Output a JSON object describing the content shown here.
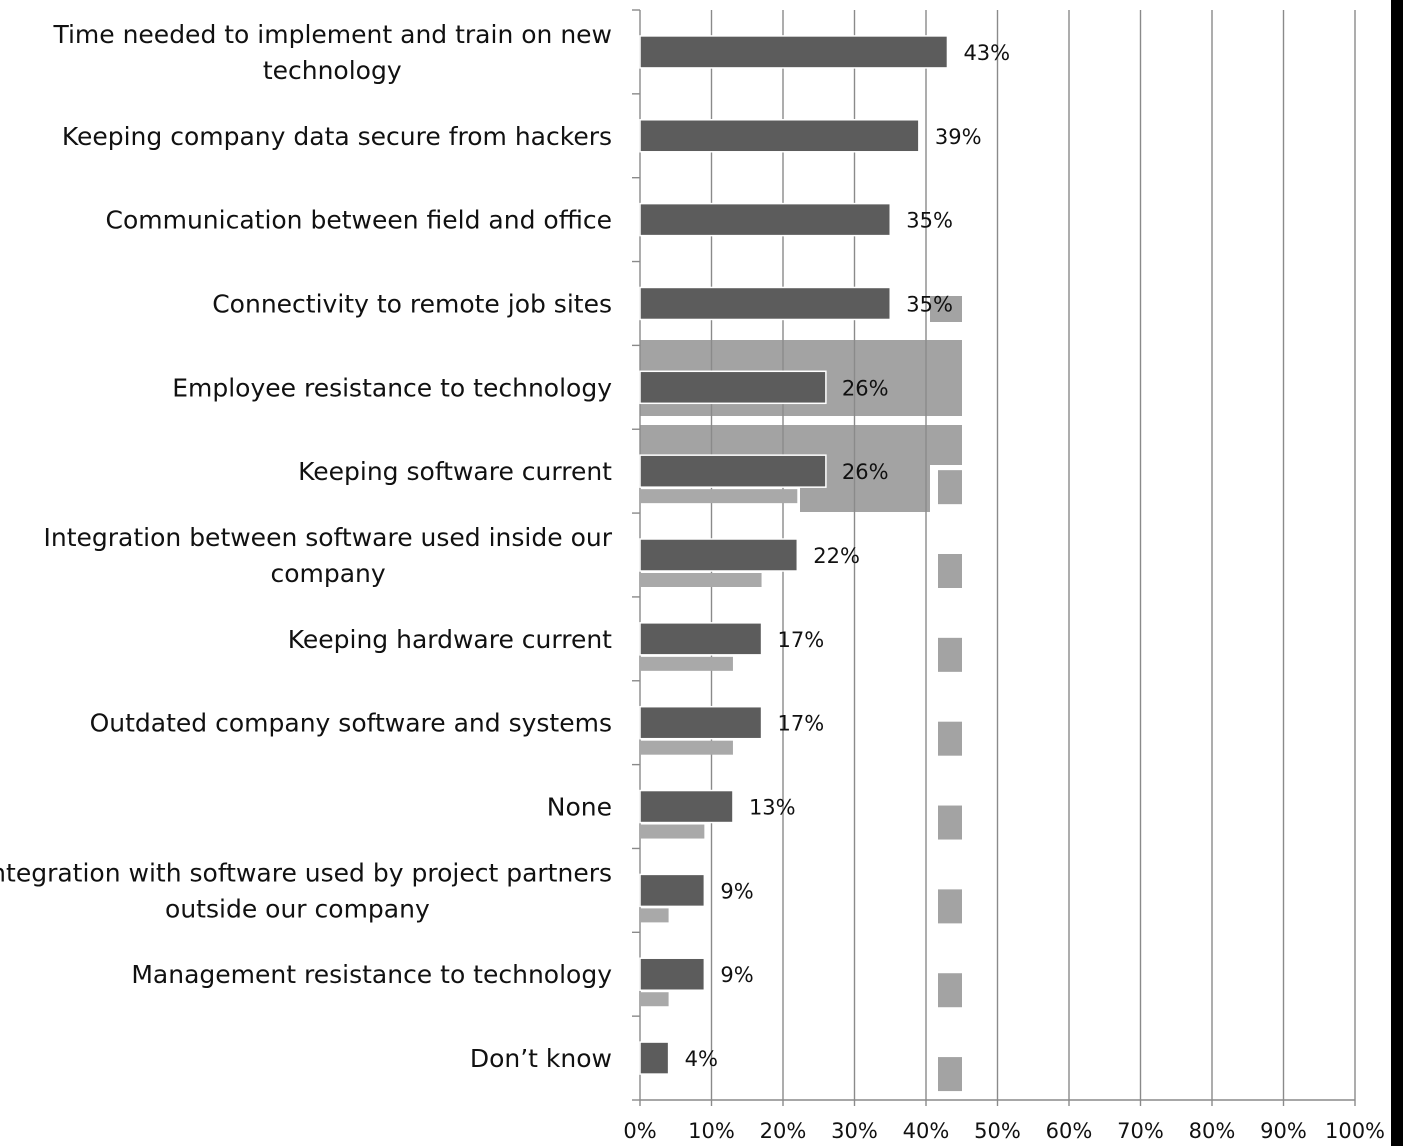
{
  "chart_data": {
    "type": "bar",
    "orientation": "horizontal",
    "categories": [
      [
        "Time needed to implement and train on new",
        "technology"
      ],
      [
        "Keeping company data secure from hackers"
      ],
      [
        "Communication between field and office"
      ],
      [
        "Connectivity to remote job sites"
      ],
      [
        "Employee resistance to technology"
      ],
      [
        "Keeping software current"
      ],
      [
        "Integration between software used inside our",
        "company"
      ],
      [
        "Keeping hardware current"
      ],
      [
        "Outdated company software and systems"
      ],
      [
        "None"
      ],
      [
        "Integration with software used by project partners",
        "outside our company"
      ],
      [
        "Management resistance to technology"
      ],
      [
        "Don’t know"
      ]
    ],
    "values": [
      43,
      39,
      35,
      35,
      26,
      26,
      22,
      17,
      17,
      13,
      9,
      9,
      4
    ],
    "data_labels": [
      "43%",
      "39%",
      "35%",
      "35%",
      "26%",
      "26%",
      "22%",
      "17%",
      "17%",
      "13%",
      "9%",
      "9%",
      "4%"
    ],
    "xlim": [
      0,
      100
    ],
    "x_ticks": [
      "0%",
      "10%",
      "20%",
      "30%",
      "40%",
      "50%",
      "60%",
      "70%",
      "80%",
      "90%",
      "100%"
    ],
    "grid": true,
    "bar_color": "#5c5c5c",
    "title": "",
    "xlabel": "",
    "ylabel": ""
  }
}
